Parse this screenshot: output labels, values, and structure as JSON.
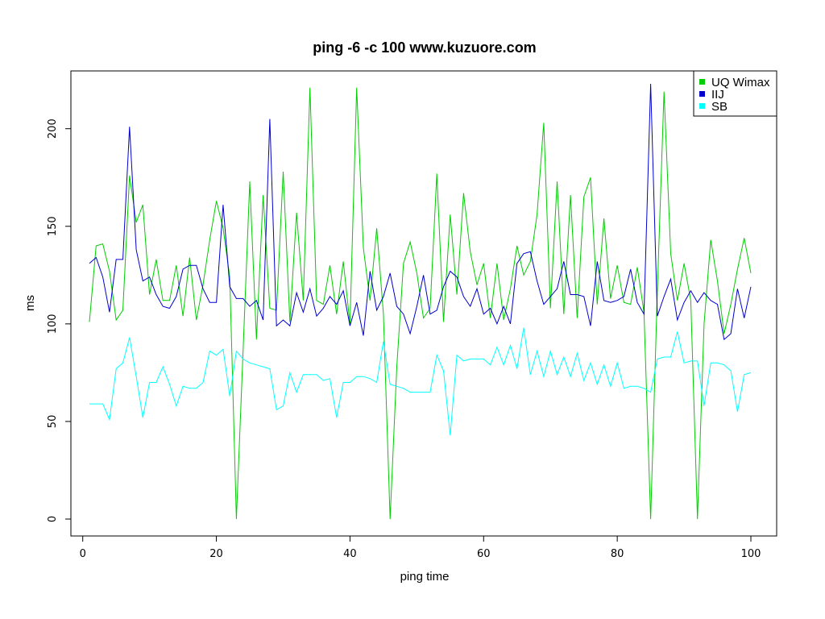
{
  "chart_data": {
    "type": "line",
    "title": "ping -6 -c 100 www.kuzuore.com",
    "xlabel": "ping time",
    "ylabel": "ms",
    "xlim": [
      1,
      100
    ],
    "ylim": [
      0,
      223
    ],
    "x_ticks": [
      0,
      20,
      40,
      60,
      80,
      100
    ],
    "y_ticks": [
      0,
      50,
      100,
      150,
      200
    ],
    "grid": false,
    "legend_position": "top-right",
    "series": [
      {
        "name": "UQ Wimax",
        "color": "#00cd00",
        "values": [
          101,
          140,
          141,
          127,
          102,
          107,
          176,
          152,
          161,
          115,
          133,
          112,
          112,
          130,
          104,
          134,
          102,
          120,
          143,
          163,
          149,
          124,
          0,
          86,
          173,
          92,
          166,
          108,
          107,
          178,
          101,
          157,
          112,
          221,
          112,
          110,
          130,
          105,
          132,
          100,
          221,
          139,
          112,
          149,
          105,
          0,
          78,
          131,
          142,
          126,
          103,
          108,
          177,
          101,
          156,
          115,
          167,
          137,
          120,
          131,
          103,
          131,
          102,
          118,
          140,
          125,
          132,
          156,
          203,
          108,
          173,
          105,
          166,
          103,
          165,
          175,
          110,
          154,
          113,
          130,
          111,
          110,
          129,
          106,
          0,
          117,
          219,
          136,
          112,
          131,
          112,
          0,
          100,
          143,
          122,
          95,
          110,
          128,
          144,
          126
        ]
      },
      {
        "name": "IIJ",
        "color": "#0000cd",
        "values": [
          131,
          134,
          124,
          106,
          133,
          133,
          201,
          138,
          122,
          124,
          115,
          109,
          108,
          114,
          128,
          130,
          130,
          118,
          111,
          111,
          161,
          119,
          113,
          113,
          109,
          112,
          102,
          205,
          99,
          102,
          99,
          116,
          106,
          118,
          104,
          108,
          114,
          110,
          117,
          99,
          111,
          94,
          127,
          107,
          114,
          126,
          109,
          105,
          95,
          109,
          125,
          105,
          107,
          119,
          127,
          124,
          114,
          109,
          118,
          105,
          108,
          100,
          109,
          100,
          131,
          136,
          137,
          122,
          110,
          114,
          118,
          132,
          115,
          115,
          114,
          99,
          132,
          112,
          111,
          112,
          114,
          128,
          111,
          105,
          223,
          104,
          114,
          123,
          102,
          111,
          117,
          111,
          116,
          112,
          110,
          92,
          95,
          118,
          103,
          119
        ]
      },
      {
        "name": "SB",
        "color": "#00ffff",
        "values": [
          59,
          59,
          59,
          51,
          77,
          80,
          93,
          73,
          52,
          70,
          70,
          78,
          69,
          58,
          68,
          67,
          67,
          70,
          86,
          84,
          87,
          63,
          86,
          82,
          80,
          79,
          78,
          77,
          56,
          58,
          75,
          65,
          74,
          74,
          74,
          71,
          72,
          52,
          70,
          70,
          73,
          73,
          72,
          70,
          91,
          69,
          68,
          67,
          65,
          65,
          65,
          65,
          84,
          76,
          43,
          84,
          81,
          82,
          82,
          82,
          79,
          88,
          79,
          89,
          77,
          98,
          74,
          86,
          73,
          86,
          74,
          83,
          73,
          85,
          71,
          80,
          69,
          79,
          68,
          80,
          67,
          68,
          68,
          67,
          65,
          82,
          83,
          83,
          96,
          80,
          81,
          81,
          58,
          80,
          80,
          79,
          76,
          55,
          74,
          75
        ]
      }
    ]
  }
}
